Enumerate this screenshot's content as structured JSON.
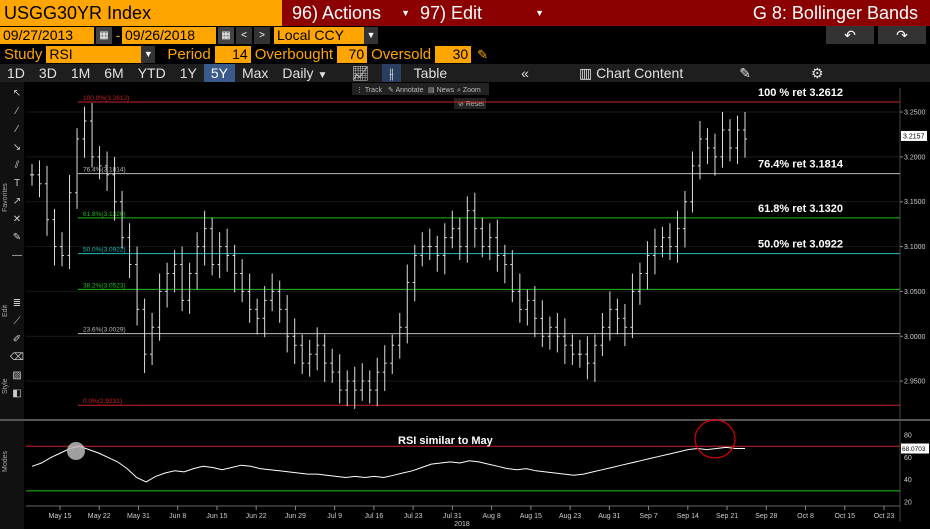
{
  "header": {
    "security": "USGG30YR Index",
    "actions": "96) Actions",
    "edit": "97) Edit",
    "function": "G 8: Bollinger Bands"
  },
  "range": {
    "start": "09/27/2013",
    "sep": "-",
    "end": "09/26/2018",
    "currency": "Local CCY",
    "undo_icon": "undo-arrow-icon",
    "redo_icon": "redo-arrow-icon"
  },
  "study": {
    "study_label": "Study",
    "study_value": "RSI",
    "period_label": "Period",
    "period_value": "14",
    "overbought_label": "Overbought",
    "overbought_value": "70",
    "oversold_label": "Oversold",
    "oversold_value": "30"
  },
  "toolbar": {
    "periods": [
      "1D",
      "3D",
      "1M",
      "6M",
      "YTD",
      "1Y",
      "5Y",
      "Max"
    ],
    "active_period": "5Y",
    "frequency": "Daily",
    "table": "Table",
    "collapse": "«",
    "chart_content": "Chart Content"
  },
  "mini_toolbar": {
    "track": "Track",
    "annotate": "Annotate",
    "news": "News",
    "zoom": "Zoom",
    "reset": "Reset"
  },
  "side_labels": {
    "favorites": "Favorites",
    "edit": "Edit",
    "style": "Style",
    "modes": "Modes"
  },
  "chart_data": {
    "type": "bar",
    "title": "",
    "xlabel": "2018",
    "ylabel": "",
    "ylim": [
      2.9111,
      3.2768
    ],
    "y_ticks": [
      "3.2500",
      "3.2000",
      "3.1500",
      "3.1000",
      "3.0500",
      "3.0000",
      "2.9500"
    ],
    "x_ticks": [
      "May 15",
      "May 22",
      "May 31",
      "Jun 8",
      "Jun 15",
      "Jun 22",
      "Jun 29",
      "Jul 9",
      "Jul 16",
      "Jul 23",
      "Jul 31",
      "Aug 8",
      "Aug 15",
      "Aug 23",
      "Aug 31",
      "Sep 7",
      "Sep 14",
      "Sep 21",
      "Sep 28",
      "Oct 8",
      "Oct 15",
      "Oct 23"
    ],
    "last_price": "3.2157",
    "fib_levels": [
      {
        "label": "100.0%(3.2612)",
        "value": 3.2612,
        "color": "#cc2222",
        "annot": "100 % ret 3.2612"
      },
      {
        "label": "76.4%(3.1814)",
        "value": 3.1814,
        "color": "#bbbbbb",
        "annot": "76.4% ret 3.1814"
      },
      {
        "label": "61.8%(3.1320)",
        "value": 3.132,
        "color": "#22bb22",
        "annot": "61.8% ret 3.1320"
      },
      {
        "label": "50.0%(3.0922)",
        "value": 3.0922,
        "color": "#22bbbb",
        "annot": "50.0% ret 3.0922"
      },
      {
        "label": "38.2%(3.0523)",
        "value": 3.0523,
        "color": "#22bb22",
        "annot": ""
      },
      {
        "label": "23.6%(3.0029)",
        "value": 3.0029,
        "color": "#bbbbbb",
        "annot": ""
      },
      {
        "label": "0.0%(2.9231)",
        "value": 2.9231,
        "color": "#cc2222",
        "annot": ""
      }
    ],
    "closes": [
      3.18,
      3.17,
      3.13,
      3.1,
      3.09,
      3.16,
      3.22,
      3.24,
      3.2,
      3.19,
      3.18,
      3.15,
      3.11,
      3.08,
      3.03,
      2.98,
      3.01,
      3.05,
      3.07,
      3.08,
      3.04,
      3.07,
      3.1,
      3.12,
      3.08,
      3.1,
      3.09,
      3.07,
      3.05,
      3.03,
      3.02,
      3.04,
      3.05,
      3.03,
      3.0,
      2.99,
      2.97,
      2.98,
      2.99,
      2.97,
      2.96,
      2.94,
      2.95,
      2.94,
      2.95,
      2.94,
      2.96,
      2.97,
      2.99,
      3.01,
      3.06,
      3.09,
      3.1,
      3.1,
      3.09,
      3.11,
      3.12,
      3.1,
      3.14,
      3.12,
      3.1,
      3.11,
      3.09,
      3.08,
      3.05,
      3.03,
      3.04,
      3.02,
      3.0,
      3.01,
      3.0,
      2.99,
      2.98,
      2.98,
      2.97,
      2.99,
      3.01,
      3.03,
      3.02,
      3.01,
      3.05,
      3.07,
      3.09,
      3.1,
      3.11,
      3.1,
      3.12,
      3.15,
      3.19,
      3.22,
      3.21,
      3.2,
      3.23,
      3.21,
      3.23,
      3.22
    ],
    "rsi": {
      "annotation": "RSI similar to May",
      "ylim": [
        20,
        90
      ],
      "y_ticks": [
        "80",
        "60",
        "40",
        "20"
      ],
      "overbought": 70,
      "oversold": 30,
      "last_value": "68.0703",
      "values": [
        52,
        55,
        60,
        64,
        68,
        70,
        67,
        64,
        60,
        56,
        50,
        42,
        38,
        43,
        46,
        48,
        47,
        50,
        52,
        51,
        49,
        51,
        53,
        52,
        50,
        49,
        48,
        47,
        46,
        45,
        45,
        44,
        43,
        42,
        43,
        42,
        43,
        42,
        44,
        46,
        48,
        51,
        54,
        55,
        56,
        55,
        57,
        56,
        54,
        52,
        50,
        49,
        50,
        48,
        47,
        46,
        45,
        44,
        45,
        47,
        49,
        51,
        53,
        55,
        57,
        59,
        61,
        63,
        65,
        67,
        68,
        67,
        68,
        69,
        68,
        68
      ]
    }
  }
}
